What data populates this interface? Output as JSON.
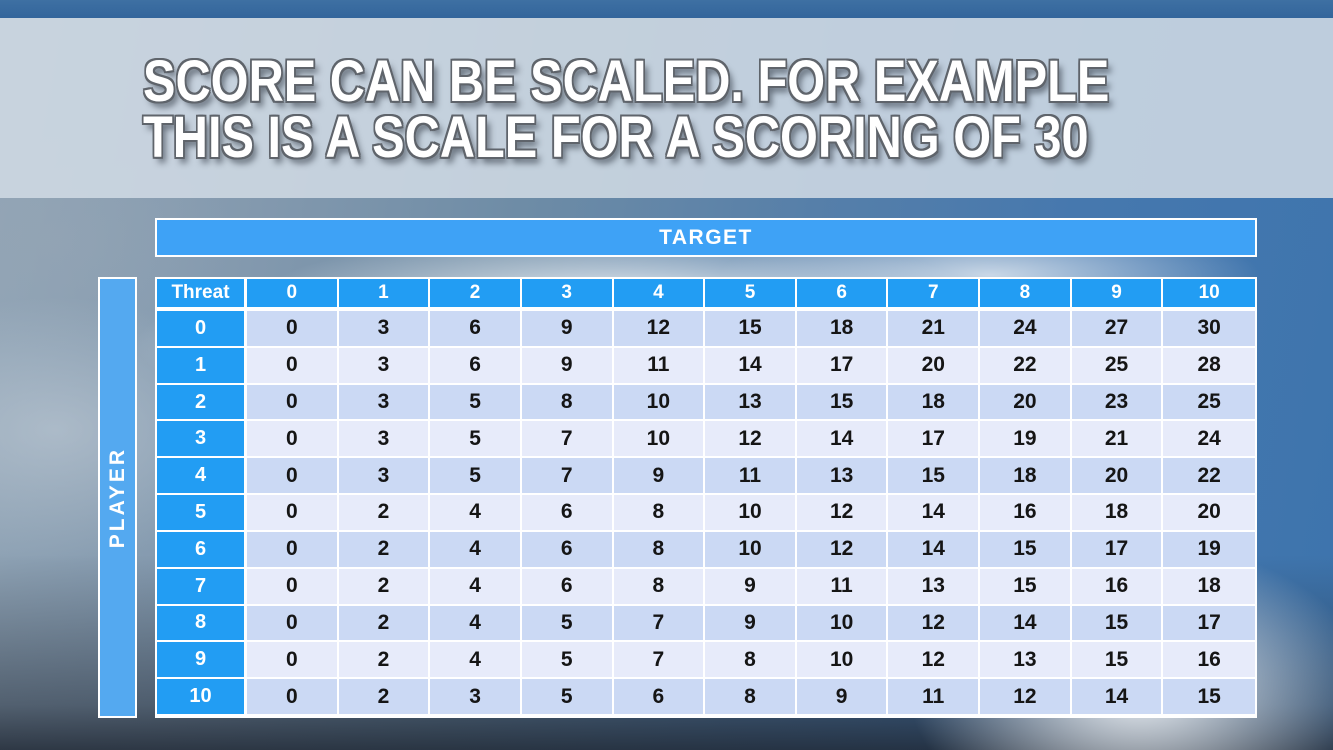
{
  "slide": {
    "title_line1": "SCORE CAN BE SCALED. FOR EXAMPLE",
    "title_line2": "THIS IS A SCALE FOR A SCORING OF 30"
  },
  "table": {
    "target_label": "TARGET",
    "player_label": "PLAYER",
    "corner_label": "Threat",
    "column_headers": [
      "0",
      "1",
      "2",
      "3",
      "4",
      "5",
      "6",
      "7",
      "8",
      "9",
      "10"
    ],
    "rows": [
      {
        "label": "0",
        "values": [
          0,
          3,
          6,
          9,
          12,
          15,
          18,
          21,
          24,
          27,
          30
        ]
      },
      {
        "label": "1",
        "values": [
          0,
          3,
          6,
          9,
          11,
          14,
          17,
          20,
          22,
          25,
          28
        ]
      },
      {
        "label": "2",
        "values": [
          0,
          3,
          5,
          8,
          10,
          13,
          15,
          18,
          20,
          23,
          25
        ]
      },
      {
        "label": "3",
        "values": [
          0,
          3,
          5,
          7,
          10,
          12,
          14,
          17,
          19,
          21,
          24
        ]
      },
      {
        "label": "4",
        "values": [
          0,
          3,
          5,
          7,
          9,
          11,
          13,
          15,
          18,
          20,
          22
        ]
      },
      {
        "label": "5",
        "values": [
          0,
          2,
          4,
          6,
          8,
          10,
          12,
          14,
          16,
          18,
          20
        ]
      },
      {
        "label": "6",
        "values": [
          0,
          2,
          4,
          6,
          8,
          10,
          12,
          14,
          15,
          17,
          19
        ]
      },
      {
        "label": "7",
        "values": [
          0,
          2,
          4,
          6,
          8,
          9,
          11,
          13,
          15,
          16,
          18
        ]
      },
      {
        "label": "8",
        "values": [
          0,
          2,
          4,
          5,
          7,
          9,
          10,
          12,
          14,
          15,
          17
        ]
      },
      {
        "label": "9",
        "values": [
          0,
          2,
          4,
          5,
          7,
          8,
          10,
          12,
          13,
          15,
          16
        ]
      },
      {
        "label": "10",
        "values": [
          0,
          2,
          3,
          5,
          6,
          8,
          9,
          11,
          12,
          14,
          15
        ]
      }
    ]
  },
  "colors": {
    "header_blue": "#229df3",
    "target_bar_blue": "#3ea2f6",
    "player_bar_blue": "#54a9f0",
    "row_band_dark": "#cbd9f4",
    "row_band_light": "#e7ebfa",
    "top_strip_blue": "#33659b",
    "title_band": "#cfdae4",
    "title_text": "#ffffff"
  }
}
